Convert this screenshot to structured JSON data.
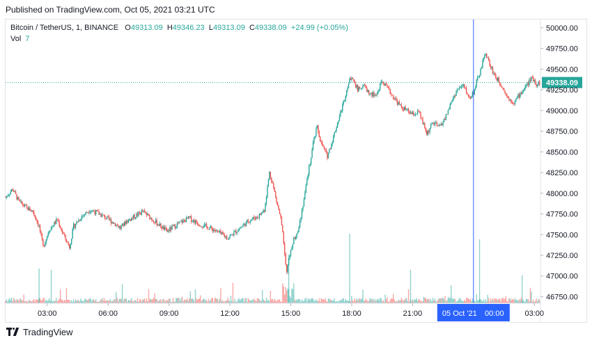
{
  "published": "Published on TradingView.com, Oct 05, 2021 03:21 UTC",
  "legend": {
    "symbol": "Bitcoin / TetherUS, 1, BINANCE",
    "o_label": "O",
    "o_value": "49313.09",
    "h_label": "H",
    "h_value": "49346.23",
    "l_label": "L",
    "l_value": "49313.09",
    "c_label": "C",
    "c_value": "49338.09",
    "change": "+24.99 (+0.05%)",
    "vol_label": "Vol",
    "vol_value": "7"
  },
  "last_price_label": "49338.09",
  "crosshair_label": {
    "date": "05 Oct '21",
    "time": "00:00"
  },
  "footer": {
    "brand": "TradingView",
    "logo_icon": "tradingview-logo-icon"
  },
  "colors": {
    "up": "#26a69a",
    "down": "#ef5350",
    "crosshair": "#2962ff",
    "last_price": "#26a69a"
  },
  "chart_data": {
    "type": "candlestick",
    "symbol": "Bitcoin / TetherUS",
    "interval": "1",
    "exchange": "BINANCE",
    "y_ticks": [
      50000,
      49750,
      49500,
      49250,
      49000,
      48750,
      48500,
      48250,
      48000,
      47750,
      47500,
      47250,
      47000,
      46750
    ],
    "y_tick_labels": [
      "50000.00",
      "49750.00",
      "49500.00",
      "49250.00",
      "49000.00",
      "48750.00",
      "48500.00",
      "48250.00",
      "48000.00",
      "47750.00",
      "47500.00",
      "47250.00",
      "47000.00",
      "46750.00"
    ],
    "ylim": [
      46670,
      50100
    ],
    "x_tick_labels": [
      "03:00",
      "06:00",
      "09:00",
      "12:00",
      "15:00",
      "18:00",
      "21:00",
      "03:00"
    ],
    "x_tick_hours": [
      3,
      6,
      9,
      12,
      15,
      18,
      21,
      27
    ],
    "x_range_hours": [
      0.95,
      27.3
    ],
    "crosshair_hour": 24,
    "last_price": 49338.09,
    "price_path": [
      [
        0.95,
        47950
      ],
      [
        1.3,
        48050
      ],
      [
        1.6,
        47900
      ],
      [
        2.0,
        47820
      ],
      [
        2.3,
        47780
      ],
      [
        2.6,
        47600
      ],
      [
        2.8,
        47350
      ],
      [
        3.1,
        47560
      ],
      [
        3.5,
        47680
      ],
      [
        3.8,
        47500
      ],
      [
        4.1,
        47350
      ],
      [
        4.3,
        47600
      ],
      [
        4.7,
        47720
      ],
      [
        5.1,
        47800
      ],
      [
        5.5,
        47760
      ],
      [
        5.9,
        47700
      ],
      [
        6.3,
        47640
      ],
      [
        6.6,
        47580
      ],
      [
        6.9,
        47660
      ],
      [
        7.3,
        47720
      ],
      [
        7.7,
        47780
      ],
      [
        8.1,
        47700
      ],
      [
        8.5,
        47620
      ],
      [
        8.9,
        47540
      ],
      [
        9.2,
        47590
      ],
      [
        9.6,
        47650
      ],
      [
        10.0,
        47700
      ],
      [
        10.4,
        47640
      ],
      [
        10.8,
        47600
      ],
      [
        11.2,
        47560
      ],
      [
        11.6,
        47500
      ],
      [
        11.9,
        47460
      ],
      [
        12.3,
        47540
      ],
      [
        12.6,
        47600
      ],
      [
        13.0,
        47680
      ],
      [
        13.4,
        47720
      ],
      [
        13.7,
        47800
      ],
      [
        13.95,
        48250
      ],
      [
        14.1,
        48120
      ],
      [
        14.3,
        47900
      ],
      [
        14.5,
        47700
      ],
      [
        14.65,
        47400
      ],
      [
        14.8,
        47050
      ],
      [
        14.9,
        47200
      ],
      [
        15.1,
        47400
      ],
      [
        15.4,
        47600
      ],
      [
        15.7,
        48000
      ],
      [
        15.9,
        48300
      ],
      [
        16.1,
        48600
      ],
      [
        16.3,
        48800
      ],
      [
        16.5,
        48600
      ],
      [
        16.8,
        48450
      ],
      [
        17.0,
        48600
      ],
      [
        17.3,
        48850
      ],
      [
        17.6,
        49100
      ],
      [
        17.8,
        49300
      ],
      [
        18.0,
        49420
      ],
      [
        18.3,
        49250
      ],
      [
        18.6,
        49300
      ],
      [
        18.9,
        49200
      ],
      [
        19.2,
        49180
      ],
      [
        19.5,
        49350
      ],
      [
        19.8,
        49250
      ],
      [
        20.1,
        49150
      ],
      [
        20.4,
        49050
      ],
      [
        20.7,
        49000
      ],
      [
        21.0,
        48950
      ],
      [
        21.3,
        48980
      ],
      [
        21.5,
        48850
      ],
      [
        21.7,
        48720
      ],
      [
        22.0,
        48850
      ],
      [
        22.3,
        48800
      ],
      [
        22.6,
        48900
      ],
      [
        22.9,
        49100
      ],
      [
        23.2,
        49250
      ],
      [
        23.5,
        49300
      ],
      [
        23.8,
        49150
      ],
      [
        24.0,
        49220
      ],
      [
        24.3,
        49450
      ],
      [
        24.6,
        49700
      ],
      [
        24.8,
        49550
      ],
      [
        25.1,
        49400
      ],
      [
        25.4,
        49300
      ],
      [
        25.7,
        49150
      ],
      [
        26.0,
        49100
      ],
      [
        26.3,
        49200
      ],
      [
        26.6,
        49300
      ],
      [
        26.9,
        49400
      ],
      [
        27.1,
        49320
      ],
      [
        27.3,
        49338
      ]
    ]
  }
}
